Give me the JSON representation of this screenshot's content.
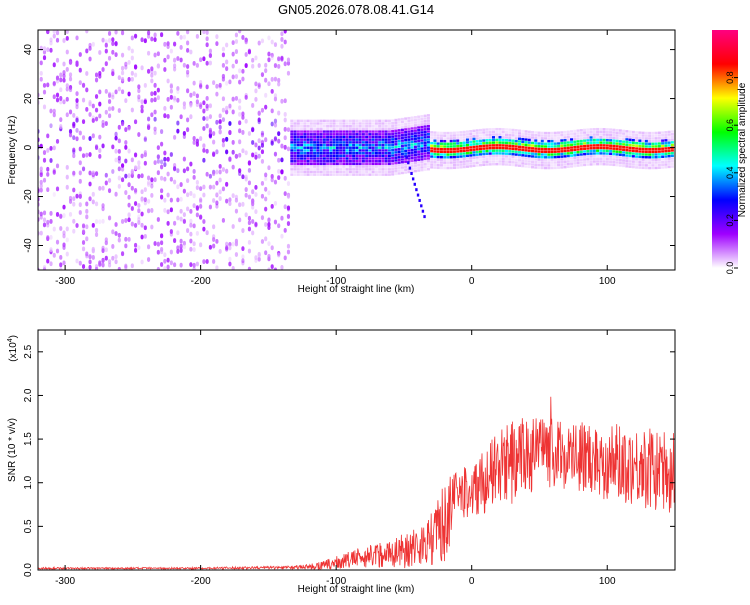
{
  "title": "GN05.2026.078.08.41.G14",
  "chart_data": [
    {
      "type": "heatmap",
      "xlabel": "Height of straight line (km)",
      "ylabel": "Frequency (Hz)",
      "xlim": [
        -320,
        150
      ],
      "ylim": [
        -50,
        48
      ],
      "xticks": [
        -300,
        -200,
        -100,
        0,
        100
      ],
      "yticks": [
        -40,
        -20,
        0,
        20,
        40
      ],
      "colorbar": {
        "label": "Normalized spectral amplitude",
        "range": [
          0,
          1
        ],
        "ticks": [
          "0.0",
          "0.2",
          "0.4",
          "0.6",
          "0.8"
        ],
        "tick_values": [
          0.0,
          0.2,
          0.4,
          0.6,
          0.8
        ],
        "colors": [
          "#ffffff",
          "#9f00ff",
          "#0000ff",
          "#00ffff",
          "#00ff00",
          "#ffff00",
          "#ff0000",
          "#ff0080"
        ]
      },
      "regions": [
        {
          "x_range": [
            -320,
            -135
          ],
          "freq_range": [
            -50,
            48
          ],
          "amplitude": 0.05,
          "note": "noise"
        },
        {
          "x_range": [
            -135,
            -30
          ],
          "freq_center": 0,
          "freq_halfwidth": 7,
          "amplitude": 0.35
        },
        {
          "x_range": [
            -30,
            150
          ],
          "freq_center": 0,
          "freq_halfwidth": 3,
          "amplitude": 0.85
        }
      ]
    },
    {
      "type": "line",
      "xlabel": "Height of straight line (km)",
      "ylabel": "SNR (10 * v/v)",
      "y_multiplier_label": "(x10",
      "y_multiplier_exp": "4",
      "y_multiplier_close": ")",
      "xlim": [
        -320,
        150
      ],
      "ylim": [
        0,
        2.75
      ],
      "xticks": [
        -300,
        -200,
        -100,
        0,
        100
      ],
      "yticks": [
        "0.0",
        "0.5",
        "1.0",
        "1.5",
        "2.0",
        "2.5"
      ],
      "ytick_values": [
        0,
        0.5,
        1.0,
        1.5,
        2.0,
        2.5
      ],
      "color": "#ee3333",
      "envelope": {
        "x": [
          -320,
          -200,
          -130,
          -110,
          -80,
          -50,
          -30,
          -20,
          -10,
          0,
          20,
          30,
          50,
          80,
          100,
          120,
          150
        ],
        "mean": [
          0.02,
          0.02,
          0.03,
          0.05,
          0.15,
          0.22,
          0.35,
          0.55,
          0.85,
          0.9,
          1.15,
          1.25,
          1.35,
          1.3,
          1.25,
          1.2,
          1.1
        ],
        "spread": [
          0.01,
          0.01,
          0.02,
          0.05,
          0.12,
          0.2,
          0.3,
          0.45,
          0.35,
          0.3,
          0.45,
          0.5,
          0.4,
          0.4,
          0.45,
          0.45,
          0.5
        ]
      }
    }
  ]
}
